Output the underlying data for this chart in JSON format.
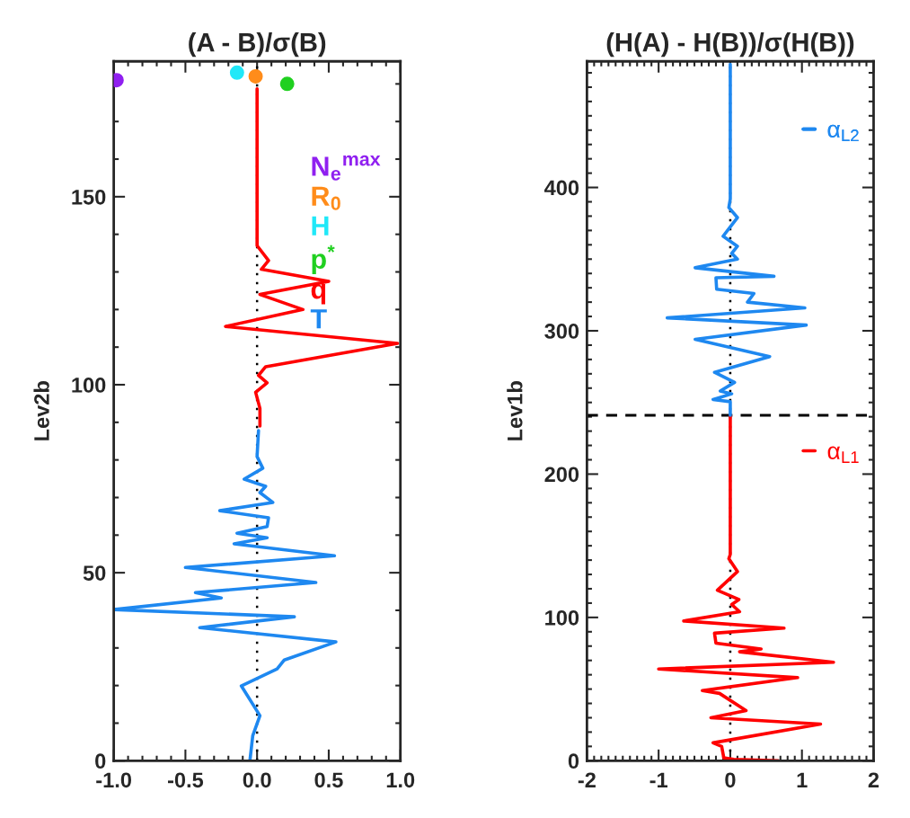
{
  "chart_data": [
    {
      "type": "line",
      "title": "(A - B)/σ(B)",
      "ylabel": "Lev2b",
      "xlim": [
        -1.0,
        1.0
      ],
      "ylim": [
        0,
        186
      ],
      "xticks": [
        {
          "value": -1.0,
          "label": "-1.0"
        },
        {
          "value": -0.5,
          "label": "-0.5"
        },
        {
          "value": 0.0,
          "label": "0.0"
        },
        {
          "value": 0.5,
          "label": "0.5"
        },
        {
          "value": 1.0,
          "label": "1.0"
        }
      ],
      "yticks": [
        0,
        50,
        100,
        150
      ],
      "legend": "top right",
      "grid": false,
      "ref_lines": [
        {
          "axis": "x",
          "value": 0,
          "color": "#000000",
          "line_style": "dotted"
        }
      ],
      "series": [
        {
          "name": "N$_{e}$$^{max}$",
          "type": "scatter",
          "color": "#9020f0",
          "x": [
            -0.98
          ],
          "values": [
            181
          ]
        },
        {
          "name": "R$_{0}$",
          "type": "scatter",
          "color": "#ff8c1a",
          "x": [
            -0.01
          ],
          "values": [
            182
          ]
        },
        {
          "name": "H",
          "type": "scatter",
          "color": "#20e8f8",
          "x": [
            -0.14
          ],
          "values": [
            183
          ]
        },
        {
          "name": "p$^{*}$",
          "type": "scatter",
          "color": "#20d020",
          "x": [
            0.21
          ],
          "values": [
            180
          ]
        },
        {
          "name": "q",
          "color": "#ff0000",
          "x": [
            0,
            0,
            0.08,
            0.03,
            0.5,
            0.02,
            0.32,
            -0.22,
            0.98,
            0.06,
            0.01,
            0.07,
            -0.01,
            0.02,
            0.02
          ],
          "values": [
            178.7,
            137,
            133,
            130.7,
            127.5,
            124,
            120,
            115.5,
            111,
            104.8,
            102.5,
            100.5,
            98,
            93.7,
            89
          ]
        },
        {
          "name": "T",
          "color": "#1e88f0",
          "x": [
            0.01,
            0,
            0.04,
            -0.09,
            0.06,
            0.02,
            0.11,
            -0.26,
            0.08,
            0.07,
            -0.14,
            0.07,
            -0.16,
            0.54,
            -0.5,
            0.41,
            -0.43,
            -0.25,
            -1.0,
            0.26,
            -0.4,
            0.55,
            0.19,
            0.14,
            -0.11,
            0.02,
            -0.03,
            -0.05
          ],
          "values": [
            87.8,
            80.9,
            77.8,
            74.9,
            73,
            71.3,
            68.7,
            66.5,
            64.6,
            62.3,
            60.5,
            59.3,
            57.7,
            54.5,
            51.4,
            47.4,
            44.7,
            43.3,
            40.2,
            38.3,
            35.4,
            31.6,
            26.8,
            24.4,
            19.9,
            12,
            6.7,
            0
          ]
        }
      ]
    },
    {
      "type": "line",
      "title": "(H(A) - H(B))/σ(H(B))",
      "ylabel": "Lev1b",
      "xlim": [
        -2,
        2
      ],
      "ylim": [
        0,
        488
      ],
      "xticks": [
        -2,
        -1,
        0,
        1,
        2
      ],
      "yticks": [
        0,
        100,
        200,
        300,
        400
      ],
      "legend": "right",
      "grid": false,
      "ref_lines": [
        {
          "axis": "x",
          "value": 0,
          "color": "#000000",
          "line_style": "dotted"
        },
        {
          "axis": "y",
          "value": 241,
          "color": "#000000",
          "line_style": "dashed"
        }
      ],
      "series": [
        {
          "name": "α$_{L1}$",
          "color": "#ff0000",
          "x": [
            0,
            0,
            -0.02,
            0.1,
            -0.18,
            0.12,
            0.02,
            0.13,
            -0.65,
            0.75,
            -0.22,
            -0.2,
            0.43,
            0.13,
            1.44,
            -1.0,
            0.94,
            -0.39,
            -0.15,
            0.22,
            -0.27,
            1.26,
            -0.24,
            -0.12,
            -0.09,
            0.05,
            0.67
          ],
          "values": [
            240.6,
            144,
            141,
            132,
            119,
            112.5,
            109,
            104,
            97.5,
            92.5,
            89,
            82,
            78,
            76,
            68.7,
            64,
            58,
            49,
            47,
            35,
            30,
            25.6,
            12.5,
            10,
            2,
            1,
            0
          ]
        },
        {
          "name": "α$_{L2}$",
          "color": "#1e88f0",
          "x": [
            0,
            0,
            -0.02,
            0.1,
            -0.1,
            0.1,
            0.02,
            0.1,
            -0.49,
            0.61,
            -0.2,
            -0.19,
            0.33,
            0.24,
            1.04,
            -0.88,
            1.06,
            -0.49,
            0.55,
            -0.22,
            0.06,
            -0.14,
            0.02,
            -0.24,
            0,
            0
          ],
          "values": [
            486,
            392,
            386,
            379,
            366,
            359,
            354,
            350,
            344,
            338,
            337,
            329,
            326,
            320,
            316,
            309,
            304,
            294,
            282,
            271,
            264,
            258,
            256,
            252,
            250.5,
            241
          ]
        }
      ]
    }
  ]
}
